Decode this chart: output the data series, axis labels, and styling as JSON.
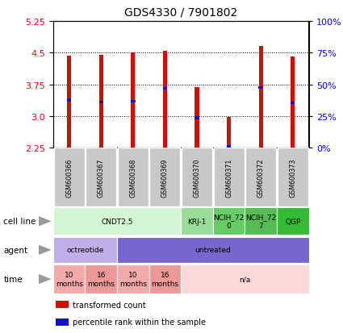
{
  "title": "GDS4330 / 7901802",
  "samples": [
    "GSM600366",
    "GSM600367",
    "GSM600368",
    "GSM600369",
    "GSM600370",
    "GSM600371",
    "GSM600372",
    "GSM600373"
  ],
  "bar_bottoms": [
    2.25,
    2.25,
    2.25,
    2.25,
    2.25,
    2.25,
    2.25,
    2.25
  ],
  "bar_tops": [
    4.43,
    4.45,
    4.5,
    4.55,
    3.68,
    2.97,
    4.65,
    4.4
  ],
  "percentile_y": [
    3.38,
    3.33,
    3.35,
    3.65,
    2.96,
    2.28,
    3.68,
    3.32
  ],
  "ylim_min": 2.25,
  "ylim_max": 5.25,
  "yticks_left": [
    2.25,
    3.0,
    3.75,
    4.5,
    5.25
  ],
  "yticks_right_vals": [
    0,
    25,
    50,
    75,
    100
  ],
  "yticks_right_labels": [
    "0%",
    "25%",
    "50%",
    "75%",
    "100%"
  ],
  "bar_color": "#cc1100",
  "percentile_color": "#1111cc",
  "sample_box_color": "#c8c8c8",
  "cell_line_groups": [
    {
      "label": "CNDT2.5",
      "start": 0,
      "end": 4,
      "color": "#d4f5d4"
    },
    {
      "label": "KRJ-1",
      "start": 4,
      "end": 5,
      "color": "#99dd99"
    },
    {
      "label": "NCIH_72\n0",
      "start": 5,
      "end": 6,
      "color": "#66cc66"
    },
    {
      "label": "NCIH_72\n7",
      "start": 6,
      "end": 7,
      "color": "#55bb55"
    },
    {
      "label": "QGP",
      "start": 7,
      "end": 8,
      "color": "#33bb33"
    }
  ],
  "agent_groups": [
    {
      "label": "octreotide",
      "start": 0,
      "end": 2,
      "color": "#c0aee8"
    },
    {
      "label": "untreated",
      "start": 2,
      "end": 8,
      "color": "#7766cc"
    }
  ],
  "time_groups": [
    {
      "label": "10\nmonths",
      "start": 0,
      "end": 1,
      "color": "#f5aaaa"
    },
    {
      "label": "16\nmonths",
      "start": 1,
      "end": 2,
      "color": "#ee9999"
    },
    {
      "label": "10\nmonths",
      "start": 2,
      "end": 3,
      "color": "#f5aaaa"
    },
    {
      "label": "16\nmonths",
      "start": 3,
      "end": 4,
      "color": "#ee9999"
    },
    {
      "label": "n/a",
      "start": 4,
      "end": 8,
      "color": "#fdd8d8"
    }
  ],
  "row_labels": [
    "cell line",
    "agent",
    "time"
  ],
  "legend_items": [
    {
      "label": "transformed count",
      "color": "#cc1100"
    },
    {
      "label": "percentile rank within the sample",
      "color": "#1111cc"
    }
  ],
  "fig_w": 4.25,
  "fig_h": 4.14,
  "dpi": 100
}
